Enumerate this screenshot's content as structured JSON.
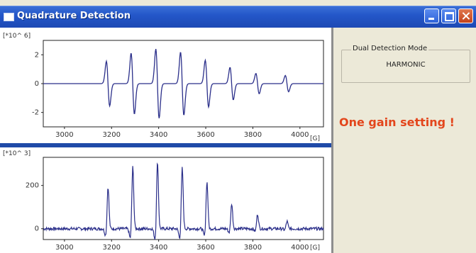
{
  "window": {
    "title": "Quadrature Detection"
  },
  "top_plot": {
    "y_multiplier": "[*10^ 6]",
    "x_unit": "[G]",
    "y_ticks": [
      "2",
      "0",
      "-2"
    ],
    "x_ticks": [
      "3000",
      "3200",
      "3400",
      "3600",
      "3800",
      "4000"
    ]
  },
  "bottom_plot": {
    "y_multiplier": "[*10^ 3]",
    "x_unit": "[G]",
    "y_ticks": [
      "200",
      "0"
    ],
    "x_ticks": [
      "3000",
      "3200",
      "3400",
      "3600",
      "3800",
      "4000"
    ]
  },
  "dual_detection": {
    "label": "Dual Detection Mode",
    "value": "HARMONIC"
  },
  "gain_note": "One gain setting !",
  "colors": {
    "trace": "#2b2f8a",
    "title_bar": "#2457c9",
    "note": "#e3461c",
    "divider": "#1f4aa8"
  },
  "icons": [
    "app-window-icon",
    "minimize-icon",
    "maximize-icon",
    "close-icon"
  ],
  "chart_data": [
    {
      "type": "line",
      "xlabel": "[G]",
      "ylabel": "[*10^ 6]",
      "xlim": [
        2910,
        4100
      ],
      "ylim": [
        -3,
        3
      ],
      "grid": false,
      "lines": [
        {
          "x": 3185,
          "amp": 1.1
        },
        {
          "x": 3290,
          "amp": 1.5
        },
        {
          "x": 3395,
          "amp": 1.7
        },
        {
          "x": 3500,
          "amp": 1.55
        },
        {
          "x": 3605,
          "amp": 1.15
        },
        {
          "x": 3710,
          "amp": 0.8
        },
        {
          "x": 3820,
          "amp": 0.5
        },
        {
          "x": 3945,
          "amp": 0.4
        }
      ]
    },
    {
      "type": "line",
      "xlabel": "[G]",
      "ylabel": "[*10^ 3]",
      "xlim": [
        2910,
        4100
      ],
      "ylim": [
        -50,
        330
      ],
      "grid": false,
      "lines": [
        {
          "x": 3185,
          "amp": 200
        },
        {
          "x": 3290,
          "amp": 295
        },
        {
          "x": 3395,
          "amp": 320
        },
        {
          "x": 3500,
          "amp": 290
        },
        {
          "x": 3605,
          "amp": 225
        },
        {
          "x": 3710,
          "amp": 120
        },
        {
          "x": 3820,
          "amp": 70
        },
        {
          "x": 3945,
          "amp": 35
        }
      ]
    }
  ]
}
